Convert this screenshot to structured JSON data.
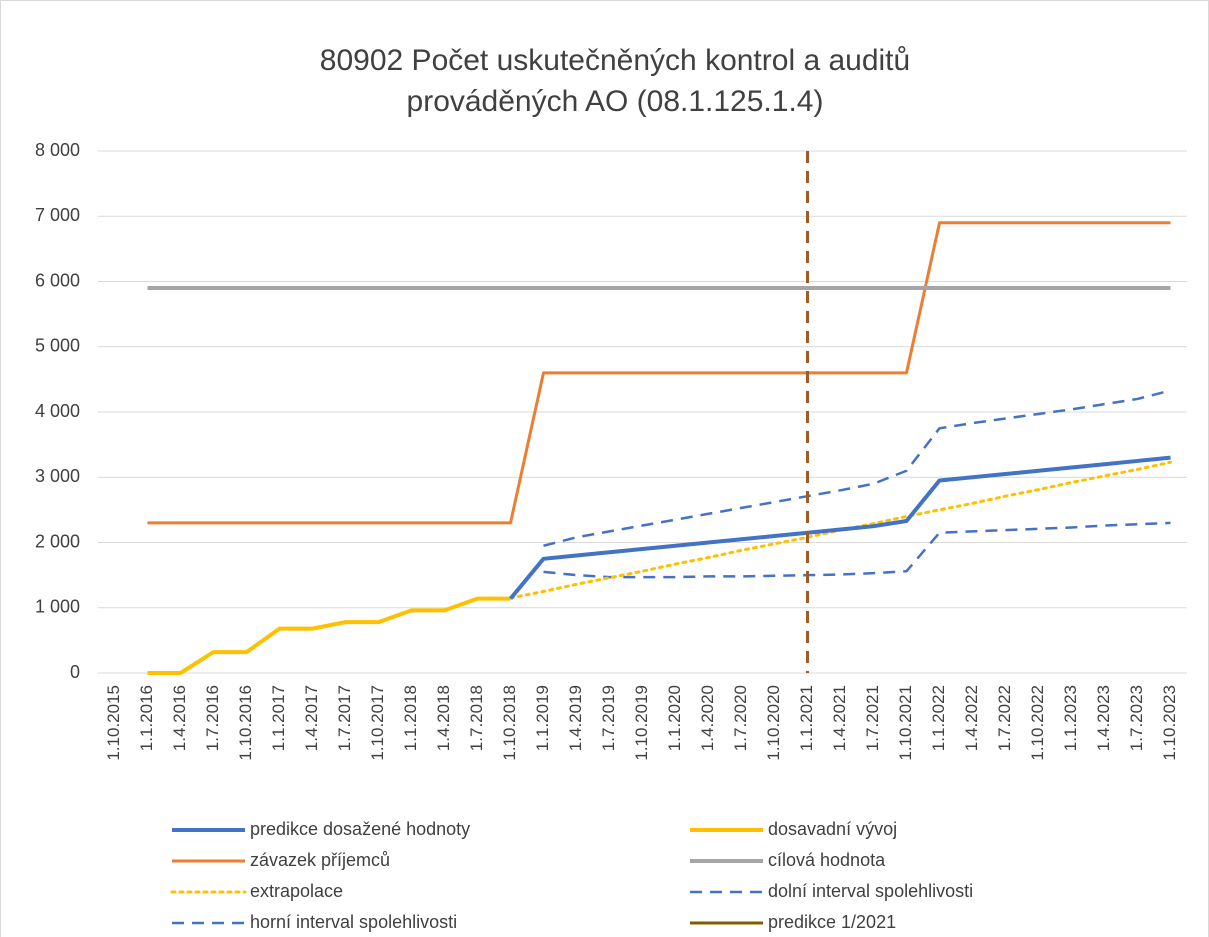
{
  "chart_data": {
    "type": "line",
    "title": "80902 Počet uskutečněných kontrol a auditů",
    "subtitle": "prováděných AO (08.1.125.1.4)",
    "categories": [
      "1.10.2015",
      "1.1.2016",
      "1.4.2016",
      "1.7.2016",
      "1.10.2016",
      "1.1.2017",
      "1.4.2017",
      "1.7.2017",
      "1.10.2017",
      "1.1.2018",
      "1.4.2018",
      "1.7.2018",
      "1.10.2018",
      "1.1.2019",
      "1.4.2019",
      "1.7.2019",
      "1.10.2019",
      "1.1.2020",
      "1.4.2020",
      "1.7.2020",
      "1.10.2020",
      "1.1.2021",
      "1.4.2021",
      "1.7.2021",
      "1.10.2021",
      "1.1.2022",
      "1.4.2022",
      "1.7.2022",
      "1.10.2022",
      "1.1.2023",
      "1.4.2023",
      "1.7.2023",
      "1.10.2023"
    ],
    "ylim": [
      0,
      8000
    ],
    "yticks": [
      0,
      {
        "value": 1000,
        "label": "1 000"
      },
      {
        "value": 2000,
        "label": "2 000"
      },
      {
        "value": 3000,
        "label": "3 000"
      },
      {
        "value": 4000,
        "label": "4 000"
      },
      {
        "value": 5000,
        "label": "5 000"
      },
      {
        "value": 6000,
        "label": "6 000"
      },
      {
        "value": 7000,
        "label": "7 000"
      },
      {
        "value": 8000,
        "label": "8 000"
      }
    ],
    "grid": true,
    "legend": "bottom",
    "series": [
      {
        "name": "predikce dosažené hodnoty",
        "color": "#4472c4",
        "width": 4,
        "dash": "solid",
        "values": [
          null,
          null,
          null,
          null,
          null,
          null,
          null,
          null,
          null,
          null,
          null,
          null,
          1140,
          1750,
          1800,
          1850,
          1900,
          1950,
          2000,
          2050,
          2100,
          2150,
          2200,
          2250,
          2330,
          2950,
          3000,
          3050,
          3100,
          3150,
          3200,
          3250,
          3300
        ]
      },
      {
        "name": "dosavadní vývoj",
        "color": "#ffc000",
        "width": 4,
        "dash": "solid",
        "values": [
          null,
          0,
          0,
          320,
          320,
          680,
          680,
          780,
          780,
          960,
          960,
          1140,
          1140,
          null,
          null,
          null,
          null,
          null,
          null,
          null,
          null,
          null,
          null,
          null,
          null,
          null,
          null,
          null,
          null,
          null,
          null,
          null,
          null
        ]
      },
      {
        "name": "závazek příjemců",
        "color": "#ed7d31",
        "width": 3,
        "dash": "solid",
        "values": [
          null,
          2300,
          2300,
          2300,
          2300,
          2300,
          2300,
          2300,
          2300,
          2300,
          2300,
          2300,
          2300,
          4600,
          4600,
          4600,
          4600,
          4600,
          4600,
          4600,
          4600,
          4600,
          4600,
          4600,
          4600,
          6900,
          6900,
          6900,
          6900,
          6900,
          6900,
          6900,
          6900
        ]
      },
      {
        "name": "cílová hodnota",
        "color": "#a5a5a5",
        "width": 4,
        "dash": "solid",
        "values": [
          null,
          5900,
          5900,
          5900,
          5900,
          5900,
          5900,
          5900,
          5900,
          5900,
          5900,
          5900,
          5900,
          5900,
          5900,
          5900,
          5900,
          5900,
          5900,
          5900,
          5900,
          5900,
          5900,
          5900,
          5900,
          5900,
          5900,
          5900,
          5900,
          5900,
          5900,
          5900,
          5900
        ]
      },
      {
        "name": "extrapolace",
        "color": "#ffc000",
        "width": 3,
        "dash": "dotted",
        "values": [
          null,
          null,
          null,
          null,
          null,
          null,
          null,
          null,
          null,
          null,
          null,
          null,
          1150,
          1250,
          1360,
          1460,
          1560,
          1670,
          1770,
          1880,
          1980,
          2080,
          2190,
          2290,
          2400,
          2500,
          2600,
          2710,
          2810,
          2920,
          3020,
          3120,
          3230
        ]
      },
      {
        "name": "dolní interval spolehlivosti",
        "color": "#4472c4",
        "width": 2.5,
        "dash": "dashed",
        "values": [
          null,
          null,
          null,
          null,
          null,
          null,
          null,
          null,
          null,
          null,
          null,
          null,
          null,
          1550,
          1500,
          1470,
          1470,
          1470,
          1480,
          1480,
          1490,
          1500,
          1510,
          1530,
          1560,
          2150,
          2170,
          2190,
          2210,
          2230,
          2260,
          2280,
          2300
        ]
      },
      {
        "name": "horní interval spolehlivosti",
        "color": "#4472c4",
        "width": 2.5,
        "dash": "dashed",
        "values": [
          null,
          null,
          null,
          null,
          null,
          null,
          null,
          null,
          null,
          null,
          null,
          null,
          null,
          1950,
          2080,
          2170,
          2260,
          2350,
          2440,
          2530,
          2620,
          2710,
          2800,
          2900,
          3100,
          3750,
          3830,
          3900,
          3970,
          4040,
          4120,
          4200,
          4330
        ]
      },
      {
        "name": "predikce 1/2021",
        "color": "#7f6000",
        "line_color": "#9e5a2a",
        "width": 3,
        "dash": "dashed",
        "x": "1.1.2021"
      }
    ]
  }
}
